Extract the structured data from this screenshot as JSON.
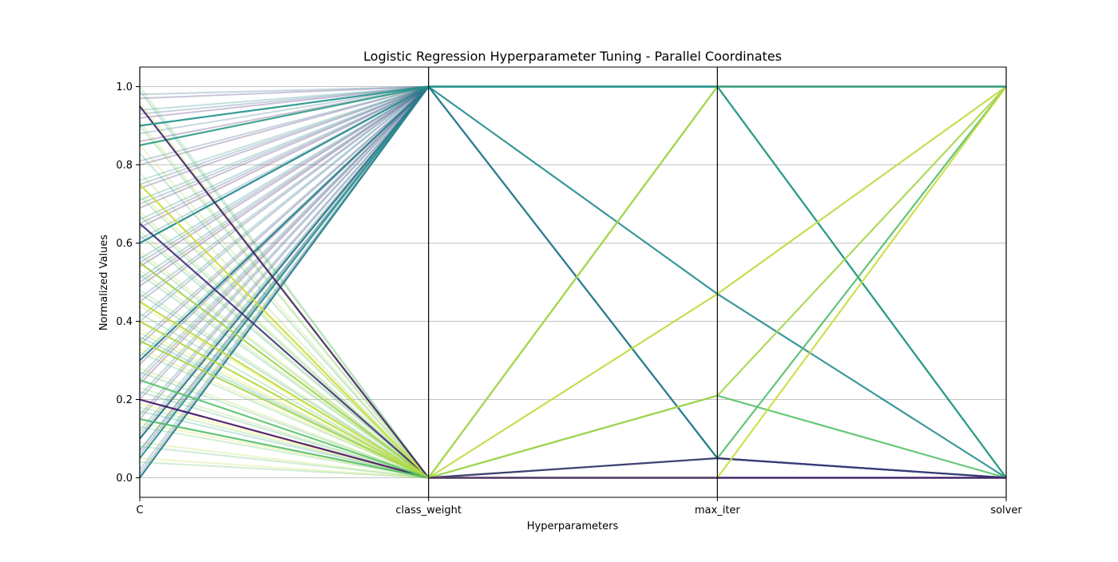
{
  "chart_data": {
    "type": "parallel-coordinates",
    "title": "Logistic Regression Hyperparameter Tuning - Parallel Coordinates",
    "xlabel": "Hyperparameters",
    "ylabel": "Normalized Values",
    "axes": [
      "C",
      "class_weight",
      "max_iter",
      "solver"
    ],
    "ylim": [
      -0.05,
      1.05
    ],
    "yticks": [
      "0.0",
      "0.2",
      "0.4",
      "0.6",
      "0.8",
      "1.0"
    ],
    "ytick_values": [
      0.0,
      0.2,
      0.4,
      0.6,
      0.8,
      1.0
    ],
    "grid": true,
    "colormap": [
      "#440154",
      "#3b528b",
      "#21918c",
      "#5ec962",
      "#fde725"
    ],
    "c_values": [
      0.0,
      0.01,
      0.02,
      0.04,
      0.05,
      0.06,
      0.07,
      0.07,
      0.08,
      0.09,
      0.1,
      0.11,
      0.12,
      0.13,
      0.14,
      0.15,
      0.16,
      0.17,
      0.18,
      0.19,
      0.2,
      0.21,
      0.22,
      0.23,
      0.24,
      0.25,
      0.26,
      0.27,
      0.28,
      0.29,
      0.3,
      0.31,
      0.32,
      0.33,
      0.34,
      0.35,
      0.36,
      0.37,
      0.38,
      0.4,
      0.41,
      0.42,
      0.44,
      0.45,
      0.46,
      0.47,
      0.48,
      0.49,
      0.5,
      0.51,
      0.52,
      0.53,
      0.54,
      0.55,
      0.56,
      0.57,
      0.58,
      0.6,
      0.61,
      0.62,
      0.63,
      0.64,
      0.65,
      0.66,
      0.67,
      0.68,
      0.69,
      0.7,
      0.71,
      0.72,
      0.73,
      0.74,
      0.75,
      0.76,
      0.78,
      0.8,
      0.81,
      0.83,
      0.85,
      0.86,
      0.88,
      0.9,
      0.91,
      0.92,
      0.93,
      0.94,
      0.95,
      0.96,
      0.97,
      0.98,
      0.99,
      1.0
    ],
    "series": [
      {
        "values": [
          0.0,
          1.0,
          1.0,
          1.0
        ],
        "color_value": 0.45
      },
      {
        "values": [
          0.05,
          1.0,
          1.0,
          0.0
        ],
        "color_value": 0.5
      },
      {
        "values": [
          0.1,
          1.0,
          0.05,
          0.0
        ],
        "color_value": 0.4
      },
      {
        "values": [
          0.3,
          1.0,
          0.05,
          0.0
        ],
        "color_value": 0.42
      },
      {
        "values": [
          0.6,
          1.0,
          0.47,
          0.0
        ],
        "color_value": 0.48
      },
      {
        "values": [
          0.85,
          1.0,
          1.0,
          0.0
        ],
        "color_value": 0.55
      },
      {
        "values": [
          0.2,
          0.0,
          0.0,
          0.0
        ],
        "color_value": 0.05
      },
      {
        "values": [
          0.4,
          0.0,
          1.0,
          1.0
        ],
        "color_value": 0.88
      },
      {
        "values": [
          0.45,
          0.0,
          0.47,
          1.0
        ],
        "color_value": 0.9
      },
      {
        "values": [
          0.25,
          0.0,
          0.21,
          0.0
        ],
        "color_value": 0.72
      },
      {
        "values": [
          0.35,
          0.0,
          0.21,
          1.0
        ],
        "color_value": 0.86
      },
      {
        "values": [
          0.15,
          0.0,
          0.05,
          1.0
        ],
        "color_value": 0.7
      },
      {
        "values": [
          0.65,
          0.0,
          0.05,
          0.0
        ],
        "color_value": 0.15
      },
      {
        "values": [
          0.75,
          0.0,
          0.0,
          1.0
        ],
        "color_value": 0.92
      },
      {
        "values": [
          0.95,
          0.0,
          0.0,
          0.0
        ],
        "color_value": 0.1
      },
      {
        "values": [
          0.55,
          0.0,
          1.0,
          1.0
        ],
        "color_value": 0.85
      },
      {
        "values": [
          0.9,
          1.0,
          1.0,
          1.0
        ],
        "color_value": 0.5
      }
    ]
  }
}
